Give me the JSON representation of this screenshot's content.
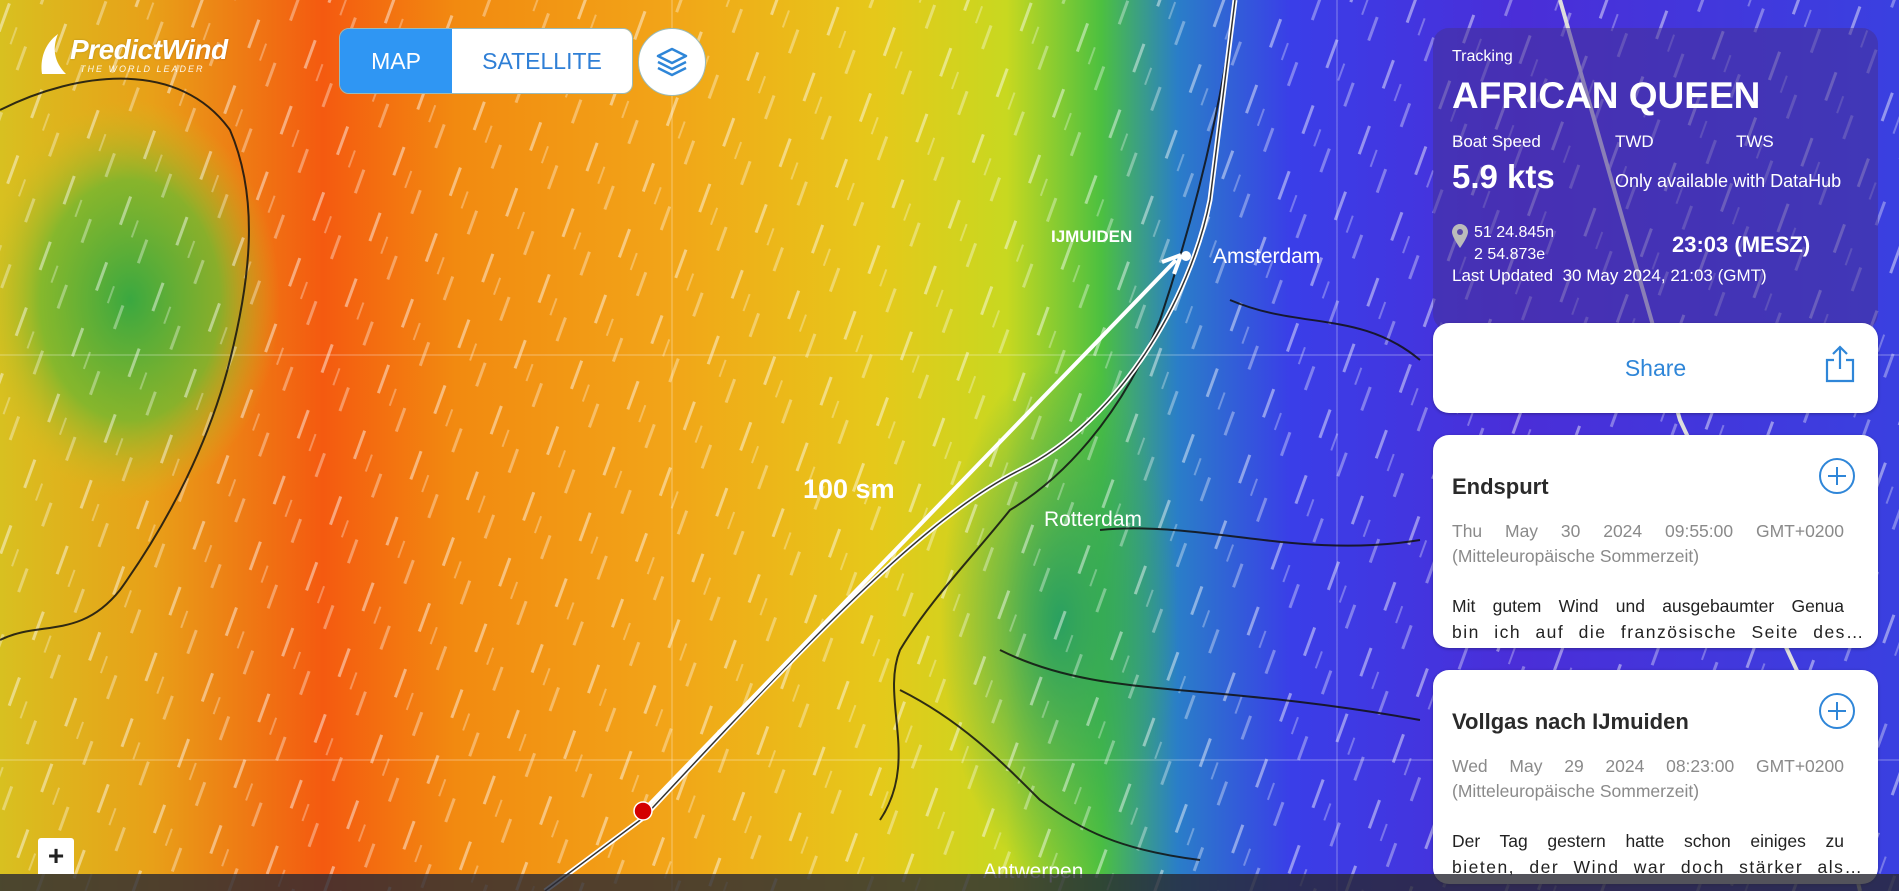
{
  "logo": {
    "name": "PredictWind",
    "tagline": "THE WORLD LEADER"
  },
  "view_toggle": {
    "map": "MAP",
    "satellite": "SATELLITE",
    "active": "MAP"
  },
  "layers_icon": "layers-icon",
  "map_labels": {
    "ijmuiden": "IJMUIDEN",
    "amsterdam": "Amsterdam",
    "rotterdam": "Rotterdam",
    "antwerpen": "Antwerpen",
    "distance": "100 sm"
  },
  "tracking": {
    "label": "Tracking",
    "boat": "AFRICAN QUEEN",
    "boat_speed_label": "Boat Speed",
    "twd_label": "TWD",
    "tws_label": "TWS",
    "boat_speed": "5.9 kts",
    "datahub_note": "Only available with DataHub",
    "lat": "51 24.845n",
    "lon": "2 54.873e",
    "local_time": "23:03 (MESZ)",
    "last_updated_label": "Last Updated",
    "last_updated": "30 May 2024, 21:03 (GMT)"
  },
  "share": {
    "label": "Share"
  },
  "posts": [
    {
      "title": "Endspurt",
      "date": "Thu May 30 2024 09:55:00 GMT+0200",
      "tz": "(Mitteleuropäische Sommerzeit)",
      "line1": "Mit gutem Wind und ausgebaumter Genua",
      "line2": "bin ich auf die französische Seite des…"
    },
    {
      "title": "Vollgas nach IJmuiden",
      "date": "Wed May 29 2024 08:23:00 GMT+0200",
      "tz": "(Mitteleuropäische Sommerzeit)",
      "line1": "Der Tag gestern hatte schon einiges zu",
      "line2": "bieten, der Wind war doch stärker als…"
    }
  ],
  "zoom_in": "+",
  "colors": {
    "accent": "#2f96f3",
    "route_dot": "#d40000",
    "panel": "#46329a"
  }
}
